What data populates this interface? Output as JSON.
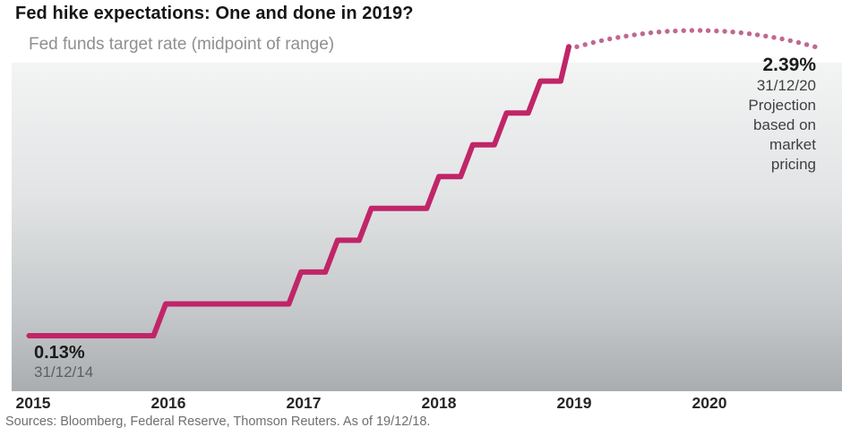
{
  "page": {
    "source": "Sources: Bloomberg, Federal Reserve, Thomson Reuters. As of 19/12/18."
  },
  "chart_data": {
    "type": "line",
    "title": "Fed hike expectations: One and done in 2019?",
    "subtitle": "Fed funds target rate (midpoint of range)",
    "unit": "percent",
    "grid": false,
    "legend_position": "none",
    "x_ticks": [
      "2015",
      "2016",
      "2017",
      "2018",
      "2019",
      "2020"
    ],
    "xlim": [
      2014.95,
      2020.95
    ],
    "ylim": [
      0,
      2.75
    ],
    "colors": {
      "actual_line": "#c02568",
      "projection_dots": "#c06890",
      "plot_gradient_top": "#f3f4f4",
      "plot_gradient_bottom": "#aaadaf"
    },
    "series": [
      {
        "name": "Fed funds target rate (actual, midpoint of range)",
        "style": "solid-step",
        "color": "#c02568",
        "points": [
          [
            2014.97,
            0.13
          ],
          [
            2015.89,
            0.13
          ],
          [
            2015.98,
            0.38
          ],
          [
            2016.89,
            0.38
          ],
          [
            2016.98,
            0.63
          ],
          [
            2017.16,
            0.63
          ],
          [
            2017.25,
            0.88
          ],
          [
            2017.41,
            0.88
          ],
          [
            2017.5,
            1.13
          ],
          [
            2017.91,
            1.13
          ],
          [
            2018.0,
            1.38
          ],
          [
            2018.16,
            1.38
          ],
          [
            2018.25,
            1.63
          ],
          [
            2018.41,
            1.63
          ],
          [
            2018.5,
            1.88
          ],
          [
            2018.66,
            1.88
          ],
          [
            2018.75,
            2.13
          ],
          [
            2018.9,
            2.13
          ],
          [
            2018.96,
            2.4
          ]
        ]
      },
      {
        "name": "Projection based on market pricing",
        "style": "dotted",
        "color": "#c06890",
        "points": [
          [
            2019.02,
            2.4
          ],
          [
            2019.081,
            2.417
          ],
          [
            2019.141,
            2.433
          ],
          [
            2019.202,
            2.448
          ],
          [
            2019.263,
            2.461
          ],
          [
            2019.324,
            2.473
          ],
          [
            2019.384,
            2.484
          ],
          [
            2019.445,
            2.494
          ],
          [
            2019.506,
            2.502
          ],
          [
            2019.566,
            2.51
          ],
          [
            2019.627,
            2.516
          ],
          [
            2019.688,
            2.521
          ],
          [
            2019.748,
            2.524
          ],
          [
            2019.809,
            2.527
          ],
          [
            2019.87,
            2.528
          ],
          [
            2019.931,
            2.528
          ],
          [
            2019.991,
            2.527
          ],
          [
            2020.052,
            2.524
          ],
          [
            2020.113,
            2.521
          ],
          [
            2020.173,
            2.516
          ],
          [
            2020.234,
            2.51
          ],
          [
            2020.295,
            2.502
          ],
          [
            2020.355,
            2.494
          ],
          [
            2020.416,
            2.484
          ],
          [
            2020.477,
            2.473
          ],
          [
            2020.537,
            2.461
          ],
          [
            2020.598,
            2.448
          ],
          [
            2020.659,
            2.433
          ],
          [
            2020.719,
            2.417
          ],
          [
            2020.78,
            2.4
          ]
        ]
      }
    ],
    "annotations": [
      {
        "id": "start",
        "value_label": "0.13%",
        "date_label": "31/12/14"
      },
      {
        "id": "end",
        "value_label": "2.39%",
        "date_label": "31/12/20",
        "note": "Projection based on market pricing"
      }
    ]
  }
}
